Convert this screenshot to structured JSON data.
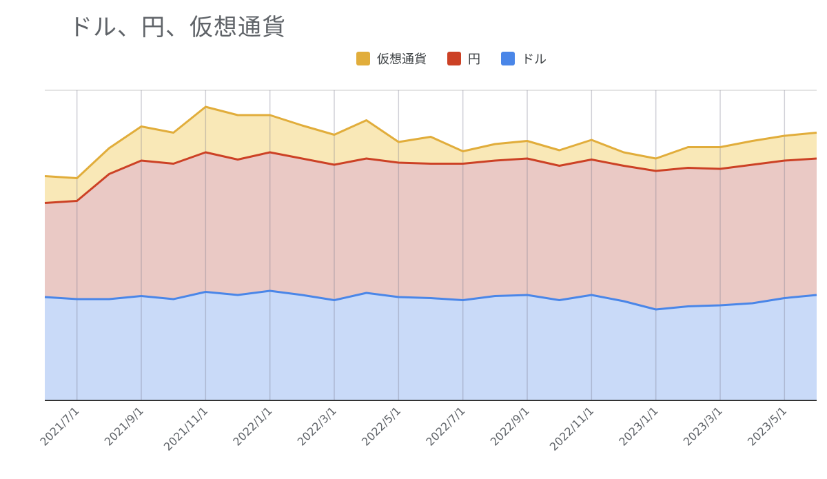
{
  "chart_data": {
    "type": "area",
    "stacked": true,
    "title": "ドル、円、仮想通貨",
    "x": [
      "2021/6/1",
      "2021/7/1",
      "2021/8/1",
      "2021/9/1",
      "2021/10/1",
      "2021/11/1",
      "2021/12/1",
      "2022/1/1",
      "2022/2/1",
      "2022/3/1",
      "2022/4/1",
      "2022/5/1",
      "2022/6/1",
      "2022/7/1",
      "2022/8/1",
      "2022/9/1",
      "2022/10/1",
      "2022/11/1",
      "2022/12/1",
      "2023/1/1",
      "2023/2/1",
      "2023/3/1",
      "2023/4/1",
      "2023/5/1",
      "2023/6/1"
    ],
    "tick_labels": [
      "2021/7/1",
      "2021/9/1",
      "2021/11/1",
      "2022/1/1",
      "2022/3/1",
      "2022/5/1",
      "2022/7/1",
      "2022/9/1",
      "2022/11/1",
      "2023/1/1",
      "2023/3/1",
      "2023/5/1"
    ],
    "series": [
      {
        "name": "ドル",
        "color": "#4a86e8",
        "fill": "#c9daf8",
        "values": [
          1.0,
          0.98,
          0.98,
          1.01,
          0.98,
          1.05,
          1.02,
          1.06,
          1.02,
          0.97,
          1.04,
          1.0,
          0.99,
          0.97,
          1.01,
          1.02,
          0.97,
          1.02,
          0.96,
          0.88,
          0.91,
          0.92,
          0.94,
          0.99,
          1.02
        ]
      },
      {
        "name": "円",
        "color": "#cc4125",
        "fill": "#eac9c5",
        "values": [
          0.91,
          0.95,
          1.21,
          1.31,
          1.31,
          1.35,
          1.31,
          1.34,
          1.32,
          1.31,
          1.3,
          1.3,
          1.3,
          1.32,
          1.31,
          1.32,
          1.3,
          1.31,
          1.31,
          1.34,
          1.34,
          1.32,
          1.34,
          1.33,
          1.32
        ]
      },
      {
        "name": "仮想通貨",
        "color": "#e1ad3b",
        "fill": "#f9e8b7",
        "values": [
          0.26,
          0.22,
          0.25,
          0.33,
          0.3,
          0.44,
          0.43,
          0.36,
          0.32,
          0.29,
          0.37,
          0.2,
          0.26,
          0.12,
          0.16,
          0.17,
          0.15,
          0.19,
          0.13,
          0.12,
          0.2,
          0.21,
          0.23,
          0.24,
          0.25
        ]
      }
    ],
    "legend_order": [
      "仮想通貨",
      "円",
      "ドル"
    ],
    "ylim": [
      0,
      3.0
    ],
    "grid": true,
    "legend_position": "top"
  }
}
